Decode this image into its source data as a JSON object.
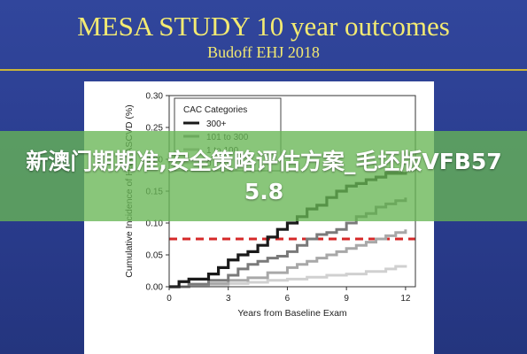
{
  "slide": {
    "title": "MESA STUDY 10 year outcomes",
    "subtitle": "Budoff EHJ 2018"
  },
  "overlay": {
    "banner_text": "新澳门期期准,安全策略评估方案_毛坯版VFB575.8"
  },
  "colors": {
    "background": "#2b3f94",
    "title_text": "#f3ea72",
    "banner": "#68b654",
    "reference_line": "#d62828",
    "series_300plus": "#1a1a1a",
    "series_101_300": "#7a7a7a",
    "series_1_100": "#a8a8a8",
    "series_0": "#d0d0d0"
  },
  "chart_data": {
    "type": "line",
    "step": true,
    "xlabel": "Years from Baseline Exam",
    "ylabel": "Cumulative Incidence of Hard ASCVD (%)",
    "xlim": [
      0,
      12.5
    ],
    "ylim": [
      0,
      0.3
    ],
    "xticks": [
      "0",
      "3",
      "6",
      "9",
      "12"
    ],
    "yticks": [
      "0.00",
      "0.05",
      "0.10",
      "0.15",
      "0.20",
      "0.25",
      "0.30"
    ],
    "grid": false,
    "legend_title": "CAC Categories",
    "legend_position": "top-left",
    "reference_line": {
      "y": 0.075,
      "style": "dashed"
    },
    "series": [
      {
        "name": "300+",
        "x": [
          0,
          0.5,
          1,
          1.5,
          2,
          2.5,
          3,
          3.5,
          4,
          4.5,
          5,
          5.5,
          6,
          6.5,
          7,
          7.5,
          8,
          8.5,
          9,
          9.5,
          10,
          10.5,
          11,
          11.5,
          12
        ],
        "y": [
          0,
          0.008,
          0.012,
          0.012,
          0.02,
          0.03,
          0.042,
          0.05,
          0.055,
          0.065,
          0.078,
          0.09,
          0.1,
          0.11,
          0.122,
          0.128,
          0.14,
          0.15,
          0.158,
          0.162,
          0.168,
          0.172,
          0.178,
          0.178,
          0.18
        ]
      },
      {
        "name": "101 to 300",
        "x": [
          0,
          1,
          2,
          3,
          3.5,
          4,
          4.5,
          5,
          5.5,
          6,
          6.5,
          7,
          7.5,
          8,
          8.5,
          9,
          9.5,
          10,
          10.5,
          11,
          11.5,
          12
        ],
        "y": [
          0,
          0.004,
          0.01,
          0.018,
          0.028,
          0.035,
          0.04,
          0.045,
          0.048,
          0.055,
          0.065,
          0.075,
          0.082,
          0.085,
          0.09,
          0.1,
          0.11,
          0.115,
          0.125,
          0.13,
          0.135,
          0.14
        ]
      },
      {
        "name": "1 to 100",
        "x": [
          0,
          1,
          2,
          3,
          4,
          5,
          6,
          6.5,
          7,
          7.5,
          8,
          8.5,
          9,
          9.5,
          10,
          10.5,
          11,
          11.5,
          12
        ],
        "y": [
          0,
          0.003,
          0.005,
          0.01,
          0.014,
          0.022,
          0.03,
          0.035,
          0.04,
          0.045,
          0.05,
          0.055,
          0.06,
          0.065,
          0.07,
          0.075,
          0.08,
          0.085,
          0.09
        ]
      },
      {
        "name": "0",
        "x": [
          0,
          1,
          2,
          3,
          4,
          5,
          6,
          7,
          8,
          9,
          10,
          11,
          11.5,
          12
        ],
        "y": [
          0,
          0.001,
          0.003,
          0.005,
          0.007,
          0.01,
          0.012,
          0.015,
          0.018,
          0.02,
          0.024,
          0.028,
          0.032,
          0.034
        ]
      }
    ]
  }
}
